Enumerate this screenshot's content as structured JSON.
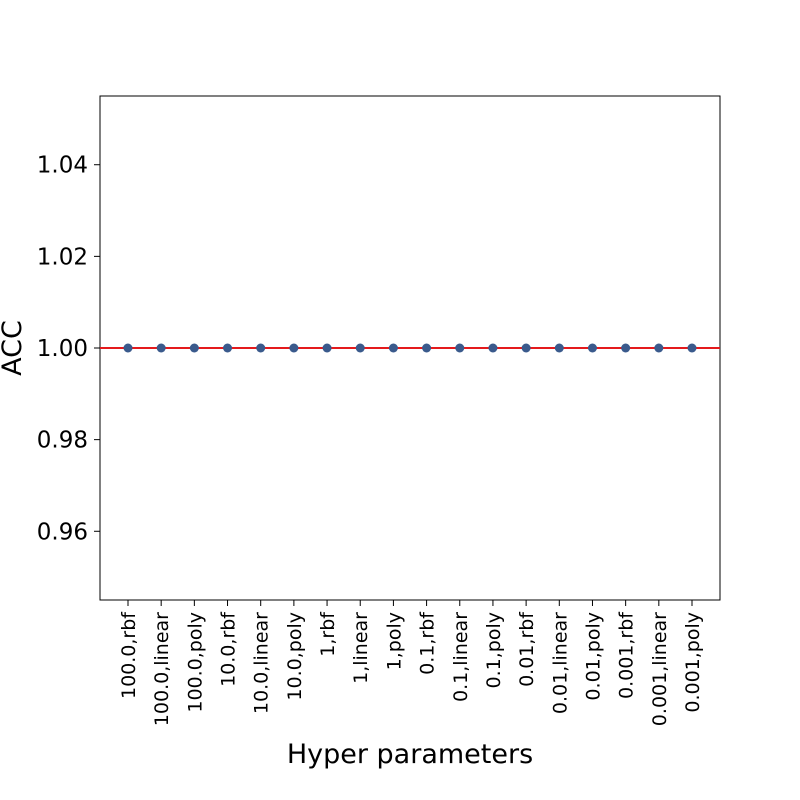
{
  "chart_data": {
    "type": "scatter",
    "title": "",
    "xlabel": "Hyper parameters",
    "ylabel": "ACC",
    "categories": [
      "100.0,rbf",
      "100.0,linear",
      "100.0,poly",
      "10.0,rbf",
      "10.0,linear",
      "10.0,poly",
      "1,rbf",
      "1,linear",
      "1,poly",
      "0.1,rbf",
      "0.1,linear",
      "0.1,poly",
      "0.01,rbf",
      "0.01,linear",
      "0.01,poly",
      "0.001,rbf",
      "0.001,linear",
      "0.001,poly"
    ],
    "values": [
      1,
      1,
      1,
      1,
      1,
      1,
      1,
      1,
      1,
      1,
      1,
      1,
      1,
      1,
      1,
      1,
      1,
      1
    ],
    "ylim": [
      0.945,
      1.055
    ],
    "yticks": [
      0.96,
      0.98,
      1.0,
      1.02,
      1.04
    ],
    "ytick_labels": [
      "0.96",
      "0.98",
      "1.00",
      "1.02",
      "1.04"
    ],
    "reference_line": {
      "y": 1.0,
      "color": "#e41a1c"
    },
    "marker_color": "#3a5a8c",
    "grid": false,
    "legend": "none"
  }
}
